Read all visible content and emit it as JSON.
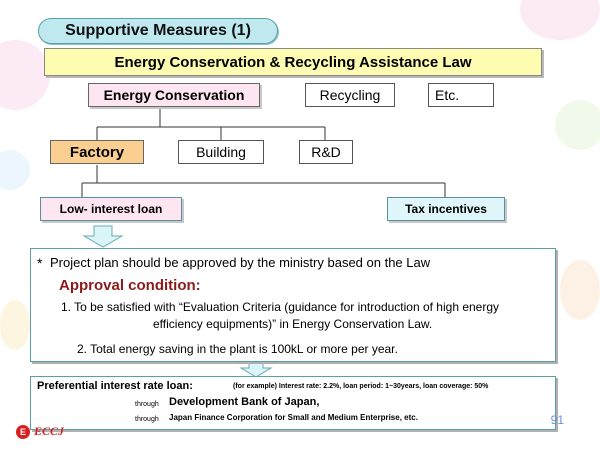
{
  "title": "Supportive Measures (1)",
  "law": "Energy Conservation & Recycling Assistance Law",
  "categories": {
    "energy_conservation": "Energy Conservation",
    "recycling": "Recycling",
    "etc": "Etc."
  },
  "sectors": {
    "factory": "Factory",
    "building": "Building",
    "rd": "R&D"
  },
  "measures": {
    "low_interest_loan": "Low- interest loan",
    "tax_incentives": "Tax incentives"
  },
  "conditions": {
    "bullet": "*",
    "note": "Project plan should be approved by the ministry based on the Law",
    "heading": "Approval condition:",
    "item1_line1": "1. To be satisfied with “Evaluation Criteria (guidance for introduction of high energy",
    "item1_line2": "efficiency equipments)” in Energy Conservation Law.",
    "item2": "2. Total energy saving in the plant is 100kL or more per year."
  },
  "preferential": {
    "heading": "Preferential interest rate loan:",
    "example": "(for example)   Interest rate: 2.2%,  loan period: 1~30years,  loan coverage:  50%",
    "through1_word": "through",
    "through1_org": "Development Bank of Japan,",
    "through2_word": "through",
    "through2_org": "Japan Finance Corporation for Small and Medium Enterprise, etc."
  },
  "page_number": "91",
  "logo": {
    "mark": "E",
    "text": "ECCJ"
  },
  "colors": {
    "title_fill": "#bfe9ee",
    "law_fill": "#fdfcb1",
    "pink_fill": "#fde6f1",
    "factory_fill": "#fbcf92",
    "cyan_fill": "#dff7fa",
    "heading_red": "#8b1a1a",
    "arrow_fill": "#d9f5f7"
  }
}
